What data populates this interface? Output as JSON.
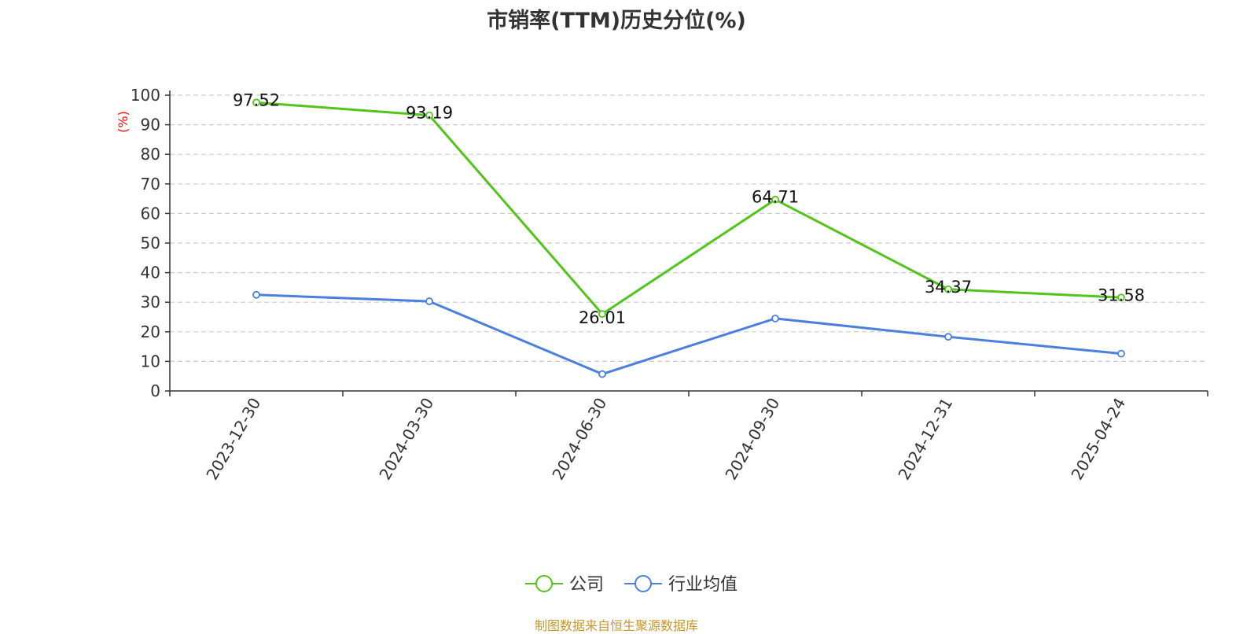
{
  "chart_data": {
    "type": "line",
    "title": "市销率(TTM)历史分位(%)",
    "ylabel": "(%)",
    "xlabel": "",
    "categories": [
      "2023-12-30",
      "2024-03-30",
      "2024-06-30",
      "2024-09-30",
      "2024-12-31",
      "2025-04-24"
    ],
    "ylim": [
      0,
      100
    ],
    "yticks": [
      0,
      10,
      20,
      30,
      40,
      50,
      60,
      70,
      80,
      90,
      100
    ],
    "grid": true,
    "legend_position": "bottom-center",
    "series": [
      {
        "name": "公司",
        "color": "#52c41a",
        "values": [
          97.52,
          93.19,
          26.01,
          64.71,
          34.37,
          31.58
        ],
        "labels": [
          "97.52",
          "93.19",
          "26.01",
          "64.71",
          "34.37",
          "31.58"
        ]
      },
      {
        "name": "行业均值",
        "color": "#4a7fe0",
        "values": [
          32.5,
          30.3,
          5.7,
          24.5,
          18.3,
          12.6
        ]
      }
    ]
  },
  "source_note": "制图数据来自恒生聚源数据库",
  "colors": {
    "axis_label": "#ff0000",
    "title": "#333333",
    "source": "#c8962e"
  }
}
